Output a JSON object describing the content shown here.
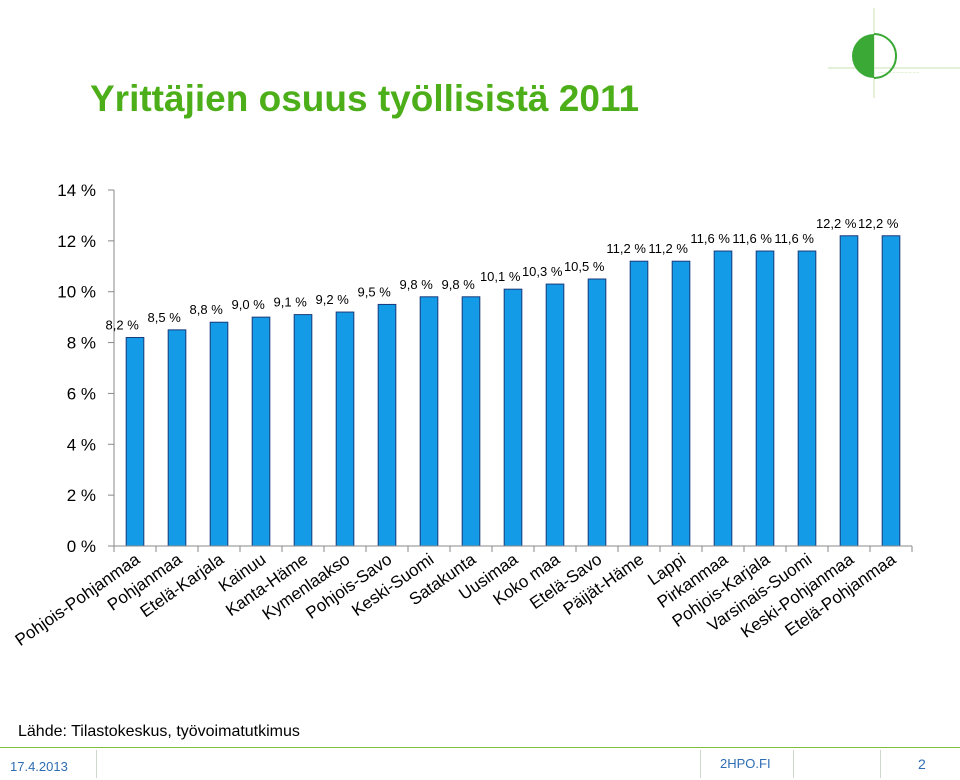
{
  "slide": {
    "title": "Yrittäjien osuus työllisistä 2011",
    "source": "Lähde: Tilastokeskus, työvoimatutkimus",
    "date": "17.4.2013",
    "site": "2HPO.FI",
    "page": "2"
  },
  "colors": {
    "title": "#4caf1a",
    "bar": "#139be8",
    "bar_edge": "#1a3a7a",
    "footer": "#2e6db4"
  },
  "logo": {
    "icon": "2hpo-logo-icon"
  },
  "chart_data": {
    "type": "bar",
    "title": "",
    "xlabel": "",
    "ylabel": "",
    "ylim": [
      0,
      14
    ],
    "yticks": [
      0,
      2,
      4,
      6,
      8,
      10,
      12,
      14
    ],
    "ytick_labels": [
      "0 %",
      "2 %",
      "4 %",
      "6 %",
      "8 %",
      "10 %",
      "12 %",
      "14 %"
    ],
    "grid": false,
    "categories": [
      "Pohjois-Pohjanmaa",
      "Pohjanmaa",
      "Etelä-Karjala",
      "Kainuu",
      "Kanta-Häme",
      "Kymenlaakso",
      "Pohjois-Savo",
      "Keski-Suomi",
      "Satakunta",
      "Uusimaa",
      "Koko maa",
      "Etelä-Savo",
      "Päijät-Häme",
      "Lappi",
      "Pirkanmaa",
      "Pohjois-Karjala",
      "Varsinais-Suomi",
      "Keski-Pohjanmaa",
      "Etelä-Pohjanmaa"
    ],
    "values": [
      8.2,
      8.5,
      8.8,
      9.0,
      9.1,
      9.2,
      9.5,
      9.8,
      9.8,
      10.1,
      10.3,
      10.5,
      11.2,
      11.2,
      11.6,
      11.6,
      11.6,
      12.2,
      12.2
    ],
    "data_labels": [
      "8,2 %",
      "8,5 %",
      "8,8 %",
      "9,0 %",
      "9,1 %",
      "9,2 %",
      "9,5 %",
      "9,8 %",
      "9,8 %",
      "10,1 %",
      "10,3 %",
      "10,5 %",
      "11,2 %",
      "11,2 %",
      "11,6 %",
      "11,6 %",
      "11,6 %",
      "12,2 %",
      "12,2 %"
    ]
  }
}
